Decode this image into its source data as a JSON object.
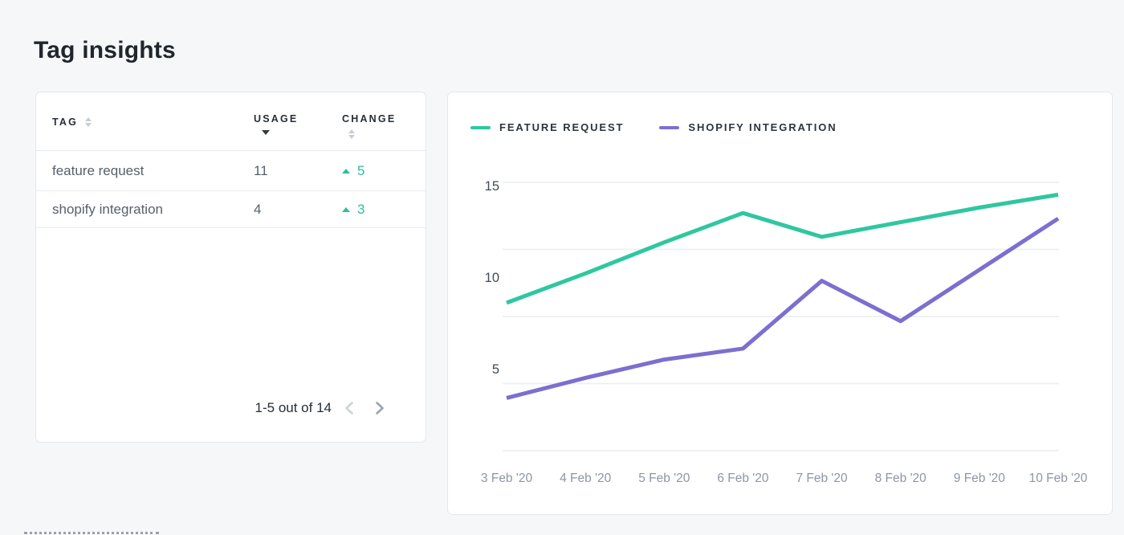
{
  "title": "Tag insights",
  "table": {
    "columns": [
      {
        "label": "TAG",
        "sort_icon": "sort-both"
      },
      {
        "label": "USAGE",
        "sort_icon": "sort-desc"
      },
      {
        "label": "CHANGE",
        "sort_icon": "sort-both"
      }
    ],
    "rows": [
      {
        "tag": "feature request",
        "usage": "11",
        "change": "5",
        "change_direction": "up"
      },
      {
        "tag": "shopify integration",
        "usage": "4",
        "change": "3",
        "change_direction": "up"
      }
    ],
    "pagination": {
      "label": "1-5 out of 14",
      "prev_icon": "chevron-left",
      "prev_enabled": false,
      "next_icon": "chevron-right",
      "next_enabled": true
    }
  },
  "colors": {
    "positive_change": "#2abfa0",
    "grid": "#eef1f4",
    "page_background": "#f6f7f9",
    "card_border": "#e4e7ec"
  },
  "chart_data": {
    "type": "line",
    "x_labels": [
      "3 Feb '20",
      "4 Feb '20",
      "5 Feb '20",
      "6 Feb '20",
      "7 Feb '20",
      "8 Feb '20",
      "9 Feb '20",
      "10 Feb '20"
    ],
    "y_ticks": [
      15,
      10,
      5
    ],
    "ylim": [
      0,
      16
    ],
    "grid": "horizontal",
    "legend_position": "top-left",
    "series": [
      {
        "name": "FEATURE REQUEST",
        "color": "#2fc7a0",
        "values": [
          8.6,
          10.2,
          11.9,
          13.5,
          12.2,
          13.0,
          13.8,
          14.5
        ]
      },
      {
        "name": "SHOPIFY INTEGRATION",
        "color": "#7b6fd0",
        "values": [
          3.4,
          4.5,
          5.5,
          6.1,
          9.8,
          7.6,
          10.4,
          13.2
        ]
      }
    ]
  }
}
